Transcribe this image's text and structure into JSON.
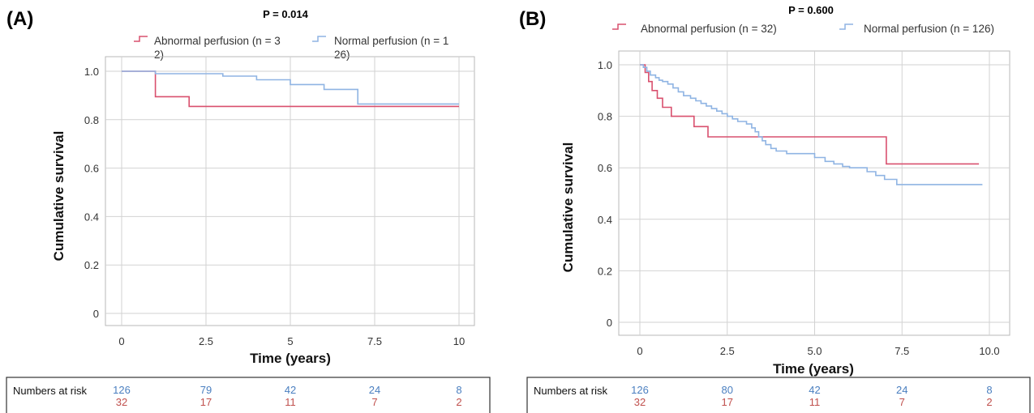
{
  "chart_data": [
    {
      "type": "line",
      "panel": "(A)",
      "title": "P = 0.014",
      "xlabel": "Time (years)",
      "ylabel": "Cumulative survival",
      "xlim": [
        0,
        10
      ],
      "ylim": [
        0,
        1.0
      ],
      "x_ticks": [
        "0",
        "2.5",
        "5",
        "7.5",
        "10"
      ],
      "y_ticks": [
        "0",
        "0.2",
        "0.4",
        "0.6",
        "0.8",
        "1.0"
      ],
      "grid": true,
      "legend_position": "top",
      "series": [
        {
          "name": "Abnormal perfusion (n = 32)",
          "color": "#d9506e",
          "step": true,
          "x": [
            0,
            1.0,
            2.0,
            10.0
          ],
          "y": [
            1.0,
            0.895,
            0.855,
            0.855
          ]
        },
        {
          "name": "Normal perfusion (n = 126)",
          "color": "#8fb4e3",
          "step": true,
          "x": [
            0,
            1.0,
            3.0,
            4.0,
            5.0,
            6.0,
            7.0,
            10.0
          ],
          "y": [
            1.0,
            0.99,
            0.98,
            0.965,
            0.945,
            0.925,
            0.865,
            0.865
          ]
        }
      ],
      "numbers_at_risk": {
        "label": "Numbers at risk",
        "rows": [
          {
            "color": "#4a7fc0",
            "values": [
              "126",
              "79",
              "42",
              "24",
              "8"
            ]
          },
          {
            "color": "#c0504d",
            "values": [
              "32",
              "17",
              "11",
              "7",
              "2"
            ]
          }
        ]
      }
    },
    {
      "type": "line",
      "panel": "(B)",
      "title": "P = 0.600",
      "xlabel": "Time (years)",
      "ylabel": "Cumulative survival",
      "xlim": [
        0,
        10
      ],
      "ylim": [
        0,
        1.0
      ],
      "x_ticks": [
        "0",
        "2.5",
        "5.0",
        "7.5",
        "10.0"
      ],
      "y_ticks": [
        "0",
        "0.2",
        "0.4",
        "0.6",
        "0.8",
        "1.0"
      ],
      "grid": true,
      "legend_position": "top",
      "series": [
        {
          "name": "Abnormal perfusion (n = 32)",
          "color": "#d9506e",
          "step": true,
          "x": [
            0,
            0.15,
            0.25,
            0.35,
            0.5,
            0.65,
            0.9,
            1.55,
            1.95,
            7.05,
            9.7
          ],
          "y": [
            1.0,
            0.97,
            0.935,
            0.9,
            0.87,
            0.835,
            0.8,
            0.76,
            0.72,
            0.615,
            0.615
          ]
        },
        {
          "name": "Normal perfusion (n = 126)",
          "color": "#8fb4e3",
          "step": true,
          "x": [
            0,
            0.1,
            0.2,
            0.3,
            0.45,
            0.55,
            0.65,
            0.8,
            0.95,
            1.1,
            1.25,
            1.45,
            1.6,
            1.75,
            1.9,
            2.05,
            2.2,
            2.35,
            2.5,
            2.65,
            2.8,
            3.05,
            3.2,
            3.3,
            3.4,
            3.5,
            3.6,
            3.75,
            3.9,
            4.2,
            5.0,
            5.3,
            5.55,
            5.8,
            6.0,
            6.5,
            6.75,
            7.0,
            7.35,
            9.8
          ],
          "y": [
            1.0,
            0.99,
            0.975,
            0.96,
            0.95,
            0.94,
            0.935,
            0.925,
            0.91,
            0.895,
            0.88,
            0.87,
            0.86,
            0.85,
            0.84,
            0.83,
            0.82,
            0.81,
            0.8,
            0.79,
            0.78,
            0.77,
            0.755,
            0.74,
            0.72,
            0.705,
            0.69,
            0.675,
            0.665,
            0.655,
            0.64,
            0.625,
            0.615,
            0.605,
            0.6,
            0.585,
            0.57,
            0.555,
            0.535,
            0.535
          ]
        }
      ],
      "numbers_at_risk": {
        "label": "Numbers at risk",
        "rows": [
          {
            "color": "#4a7fc0",
            "values": [
              "126",
              "80",
              "42",
              "24",
              "8"
            ]
          },
          {
            "color": "#c0504d",
            "values": [
              "32",
              "17",
              "11",
              "7",
              "2"
            ]
          }
        ]
      }
    }
  ]
}
